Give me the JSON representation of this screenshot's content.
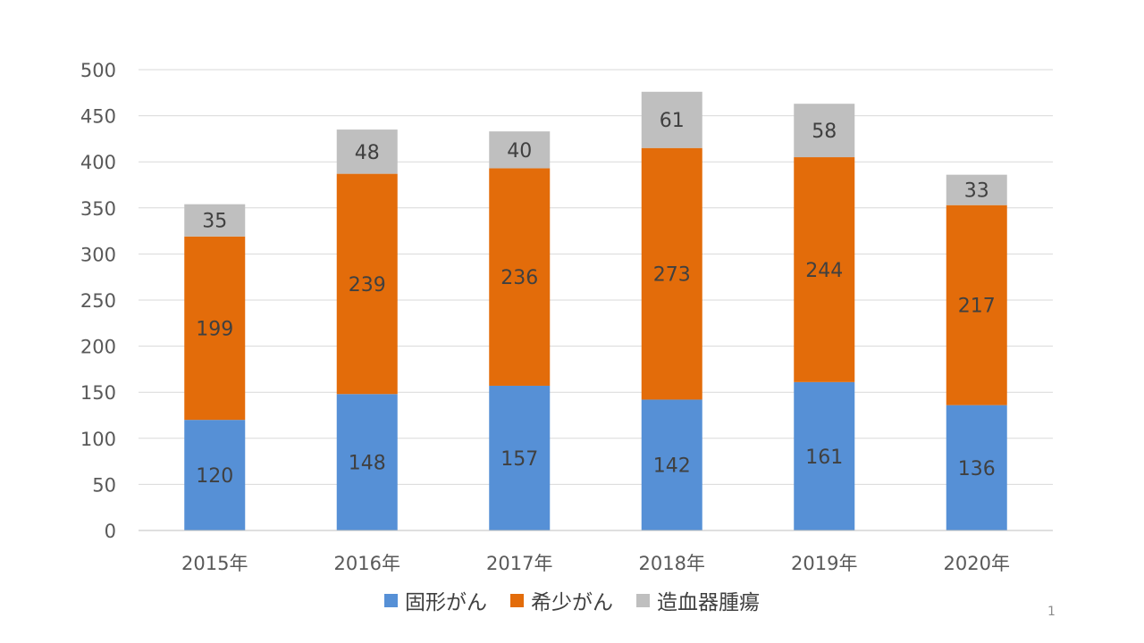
{
  "chart_data": {
    "type": "bar",
    "stacked": true,
    "categories": [
      "2015年",
      "2016年",
      "2017年",
      "2018年",
      "2019年",
      "2020年"
    ],
    "series": [
      {
        "name": "固形がん",
        "color": "#5690D6",
        "values": [
          120,
          148,
          157,
          142,
          161,
          136
        ]
      },
      {
        "name": "希少がん",
        "color": "#E36C0A",
        "values": [
          199,
          239,
          236,
          273,
          244,
          217
        ]
      },
      {
        "name": "造血器腫瘍",
        "color": "#BFBFBF",
        "values": [
          35,
          48,
          40,
          61,
          58,
          33
        ]
      }
    ],
    "ylim": [
      0,
      500
    ],
    "yticks": [
      0,
      50,
      100,
      150,
      200,
      250,
      300,
      350,
      400,
      450,
      500
    ],
    "grid": true,
    "legend_position": "bottom",
    "title": "",
    "xlabel": "",
    "ylabel": ""
  },
  "page_number": "1"
}
